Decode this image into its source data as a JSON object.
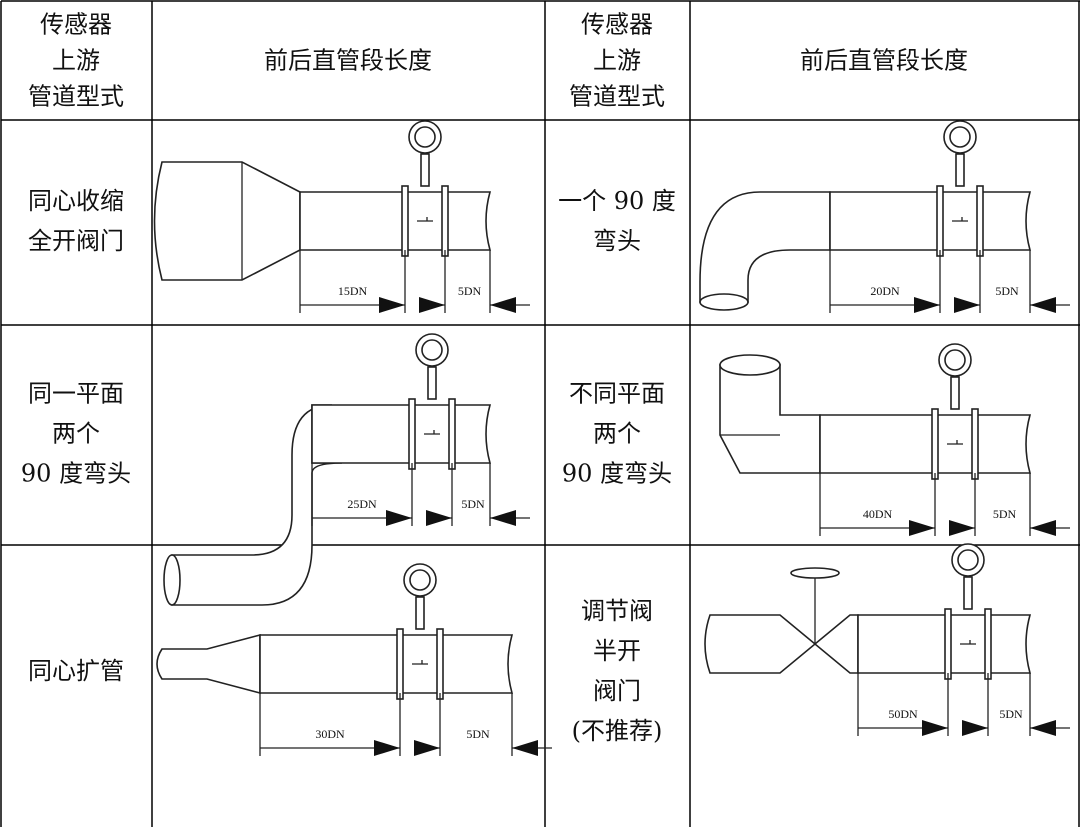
{
  "header": [
    {
      "lines": [
        "传感器",
        "上游",
        "管道型式"
      ]
    },
    {
      "lines": [
        "前后直管段长度"
      ]
    },
    {
      "lines": [
        "传感器",
        "上游",
        "管道型式"
      ]
    },
    {
      "lines": [
        "前后直管段长度"
      ]
    }
  ],
  "rows": [
    {
      "left_type": {
        "lines": [
          "同心收缩",
          "全开阀门"
        ]
      },
      "left_dims": [
        "15DN",
        "5DN"
      ],
      "right_type": {
        "lines": [
          "一个 90 度",
          "弯头"
        ]
      },
      "right_dims": [
        "20DN",
        "5DN"
      ]
    },
    {
      "left_type": {
        "lines": [
          "同一平面",
          "两个",
          "90 度弯头"
        ]
      },
      "left_dims": [
        "25DN",
        "5DN"
      ],
      "right_type": {
        "lines": [
          "不同平面",
          "两个",
          "90 度弯头"
        ]
      },
      "right_dims": [
        "40DN",
        "5DN"
      ]
    },
    {
      "left_type": {
        "lines": [
          "同心扩管"
        ]
      },
      "left_dims": [
        "30DN",
        "5DN"
      ],
      "right_type": {
        "lines": [
          "调节阀",
          "半开",
          "阀门",
          "(不推荐)"
        ]
      },
      "right_dims": [
        "50DN",
        "5DN"
      ]
    }
  ]
}
